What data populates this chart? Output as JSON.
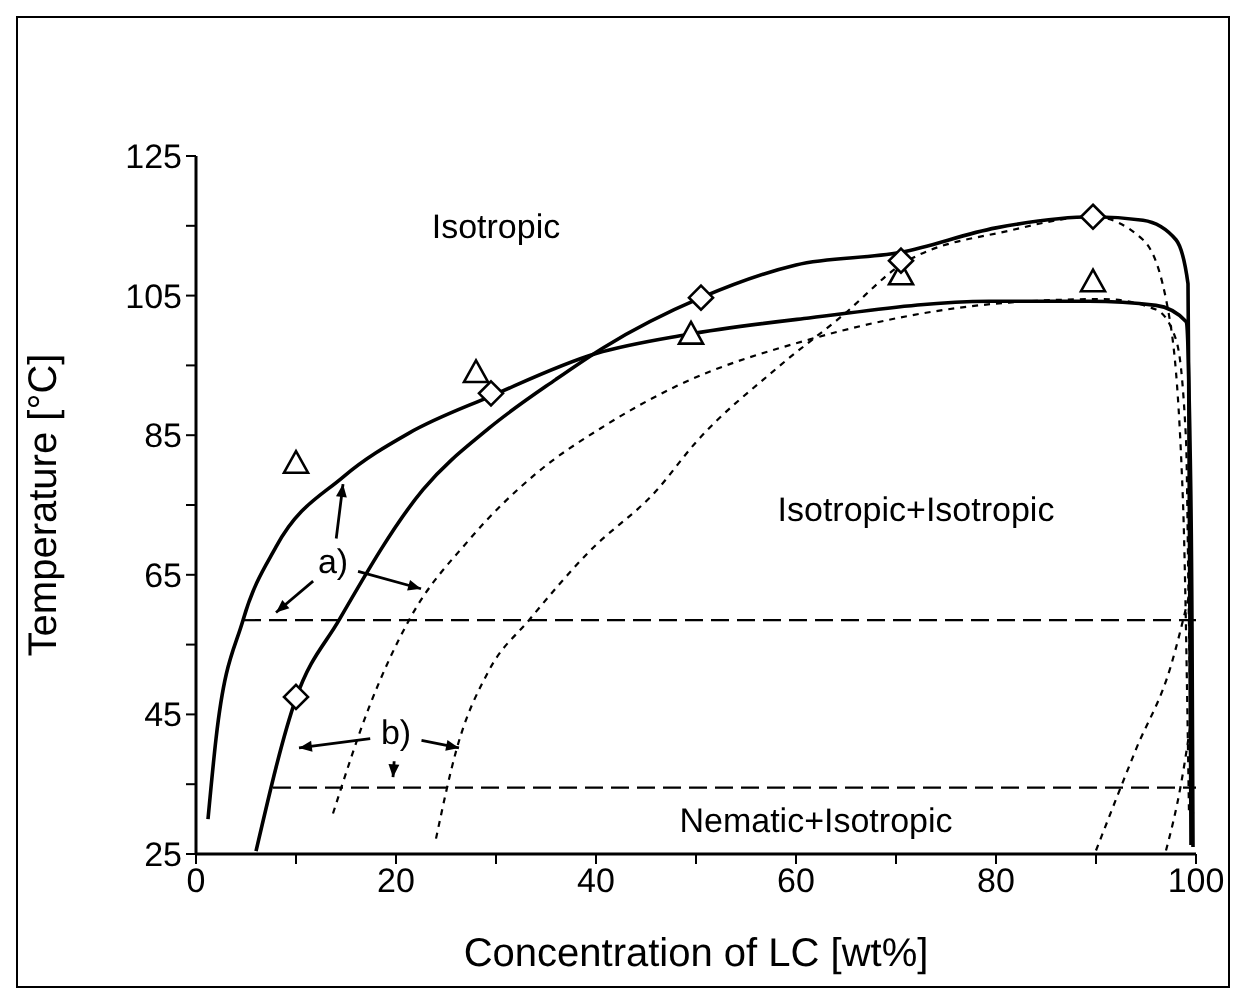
{
  "chart_data": {
    "type": "line",
    "xlabel": "Concentration of LC [wt%]",
    "ylabel": "Temperature [°C]",
    "xlim": [
      0,
      100
    ],
    "xticks": [
      0,
      {
        "value": 10,
        "label": null
      },
      20,
      {
        "value": 30,
        "label": null
      },
      40,
      {
        "value": 50,
        "label": null
      },
      60,
      {
        "value": 70,
        "label": null
      },
      80,
      {
        "value": 90,
        "label": null
      },
      100
    ],
    "ylim": [
      25,
      125
    ],
    "yticks": [
      25,
      {
        "value": 35,
        "label": null
      },
      45,
      {
        "value": 55,
        "label": null
      },
      65,
      {
        "value": 75,
        "label": null
      },
      85,
      {
        "value": 95,
        "label": null
      },
      105,
      {
        "value": 115,
        "label": null
      },
      125
    ],
    "series": [
      {
        "color": "#000000",
        "line_style": "solid",
        "marker": "none",
        "x": [
          1.2,
          2,
          4.7,
          8,
          14.7,
          21.3,
          29.5,
          40,
          49,
          61.3,
          79.3,
          89.3,
          96,
          99,
          99.4,
          99.6,
          99.7
        ],
        "values": [
          30,
          41.5,
          58.5,
          69,
          79,
          85.3,
          90.6,
          96.7,
          99.4,
          101.8,
          104.2,
          104.2,
          103.6,
          101.3,
          84,
          57.6,
          26
        ]
      },
      {
        "color": "#000000",
        "line_style": "solid",
        "marker": "none",
        "x": [
          6,
          10,
          14.3,
          22.7,
          29.3,
          36,
          40.7,
          50.5,
          60,
          70.5,
          80,
          89.7,
          94.7,
          98,
          99.2,
          99.3,
          99.5
        ],
        "values": [
          25.4,
          47.3,
          58.5,
          77.2,
          86,
          93,
          97.5,
          104.7,
          109.4,
          111.2,
          114.7,
          116.3,
          115.8,
          113,
          106.7,
          84.4,
          26.3
        ]
      },
      {
        "color": "#000000",
        "line_style": "dotted",
        "marker": "none",
        "x": [
          13.7,
          17.3,
          21.3,
          27.3,
          34,
          40.7,
          48,
          61.3,
          81.3,
          90.7,
          96,
          98,
          99,
          99.3,
          99.7
        ],
        "values": [
          30.8,
          46,
          58.5,
          70,
          79.5,
          86.2,
          92,
          98.7,
          104,
          104.5,
          103,
          98.7,
          84.4,
          57.6,
          30.8
        ]
      },
      {
        "color": "#000000",
        "line_style": "dotted",
        "marker": "none",
        "x": [
          24,
          26,
          29.3,
          33.3,
          39.3,
          46,
          50,
          58,
          64.7,
          70.7,
          81.3,
          89.7,
          94.7,
          97.3,
          98.7,
          99.3
        ],
        "values": [
          27.2,
          39.7,
          51.3,
          58.5,
          68.3,
          77,
          84,
          94.5,
          102.2,
          109.6,
          114.3,
          116.3,
          113,
          102.2,
          75.4,
          30.8
        ]
      },
      {
        "color": "#000000",
        "line_style": "dotted",
        "marker": "none",
        "x": [
          90,
          94,
          97.5,
          99.3
        ],
        "values": [
          25.5,
          40,
          52,
          62
        ]
      },
      {
        "color": "#000000",
        "line_style": "dotted",
        "marker": "none",
        "x": [
          97,
          98.5,
          99.5
        ],
        "values": [
          25.5,
          35,
          44
        ]
      },
      {
        "color": "#000000",
        "line_style": "dashed",
        "marker": "none",
        "x": [
          4.7,
          100
        ],
        "values": [
          58.5,
          58.5
        ]
      },
      {
        "color": "#000000",
        "line_style": "dashed",
        "marker": "none",
        "x": [
          7.7,
          100
        ],
        "values": [
          34.5,
          34.5
        ]
      },
      {
        "type": "scatter",
        "color": "#000000",
        "marker": "triangle",
        "x": [
          10,
          28,
          49.5,
          70.5,
          89.7
        ],
        "values": [
          81,
          94,
          99.5,
          108,
          107
        ]
      },
      {
        "type": "scatter",
        "color": "#000000",
        "marker": "diamond",
        "x": [
          10,
          29.5,
          50.5,
          70.5,
          89.7
        ],
        "values": [
          47.5,
          91,
          104.7,
          110,
          116.3
        ]
      }
    ],
    "annotations": [
      "Isotropic",
      "Isotropic+Isotropic",
      "Nematic+Isotropic",
      "a)",
      "b)"
    ]
  }
}
